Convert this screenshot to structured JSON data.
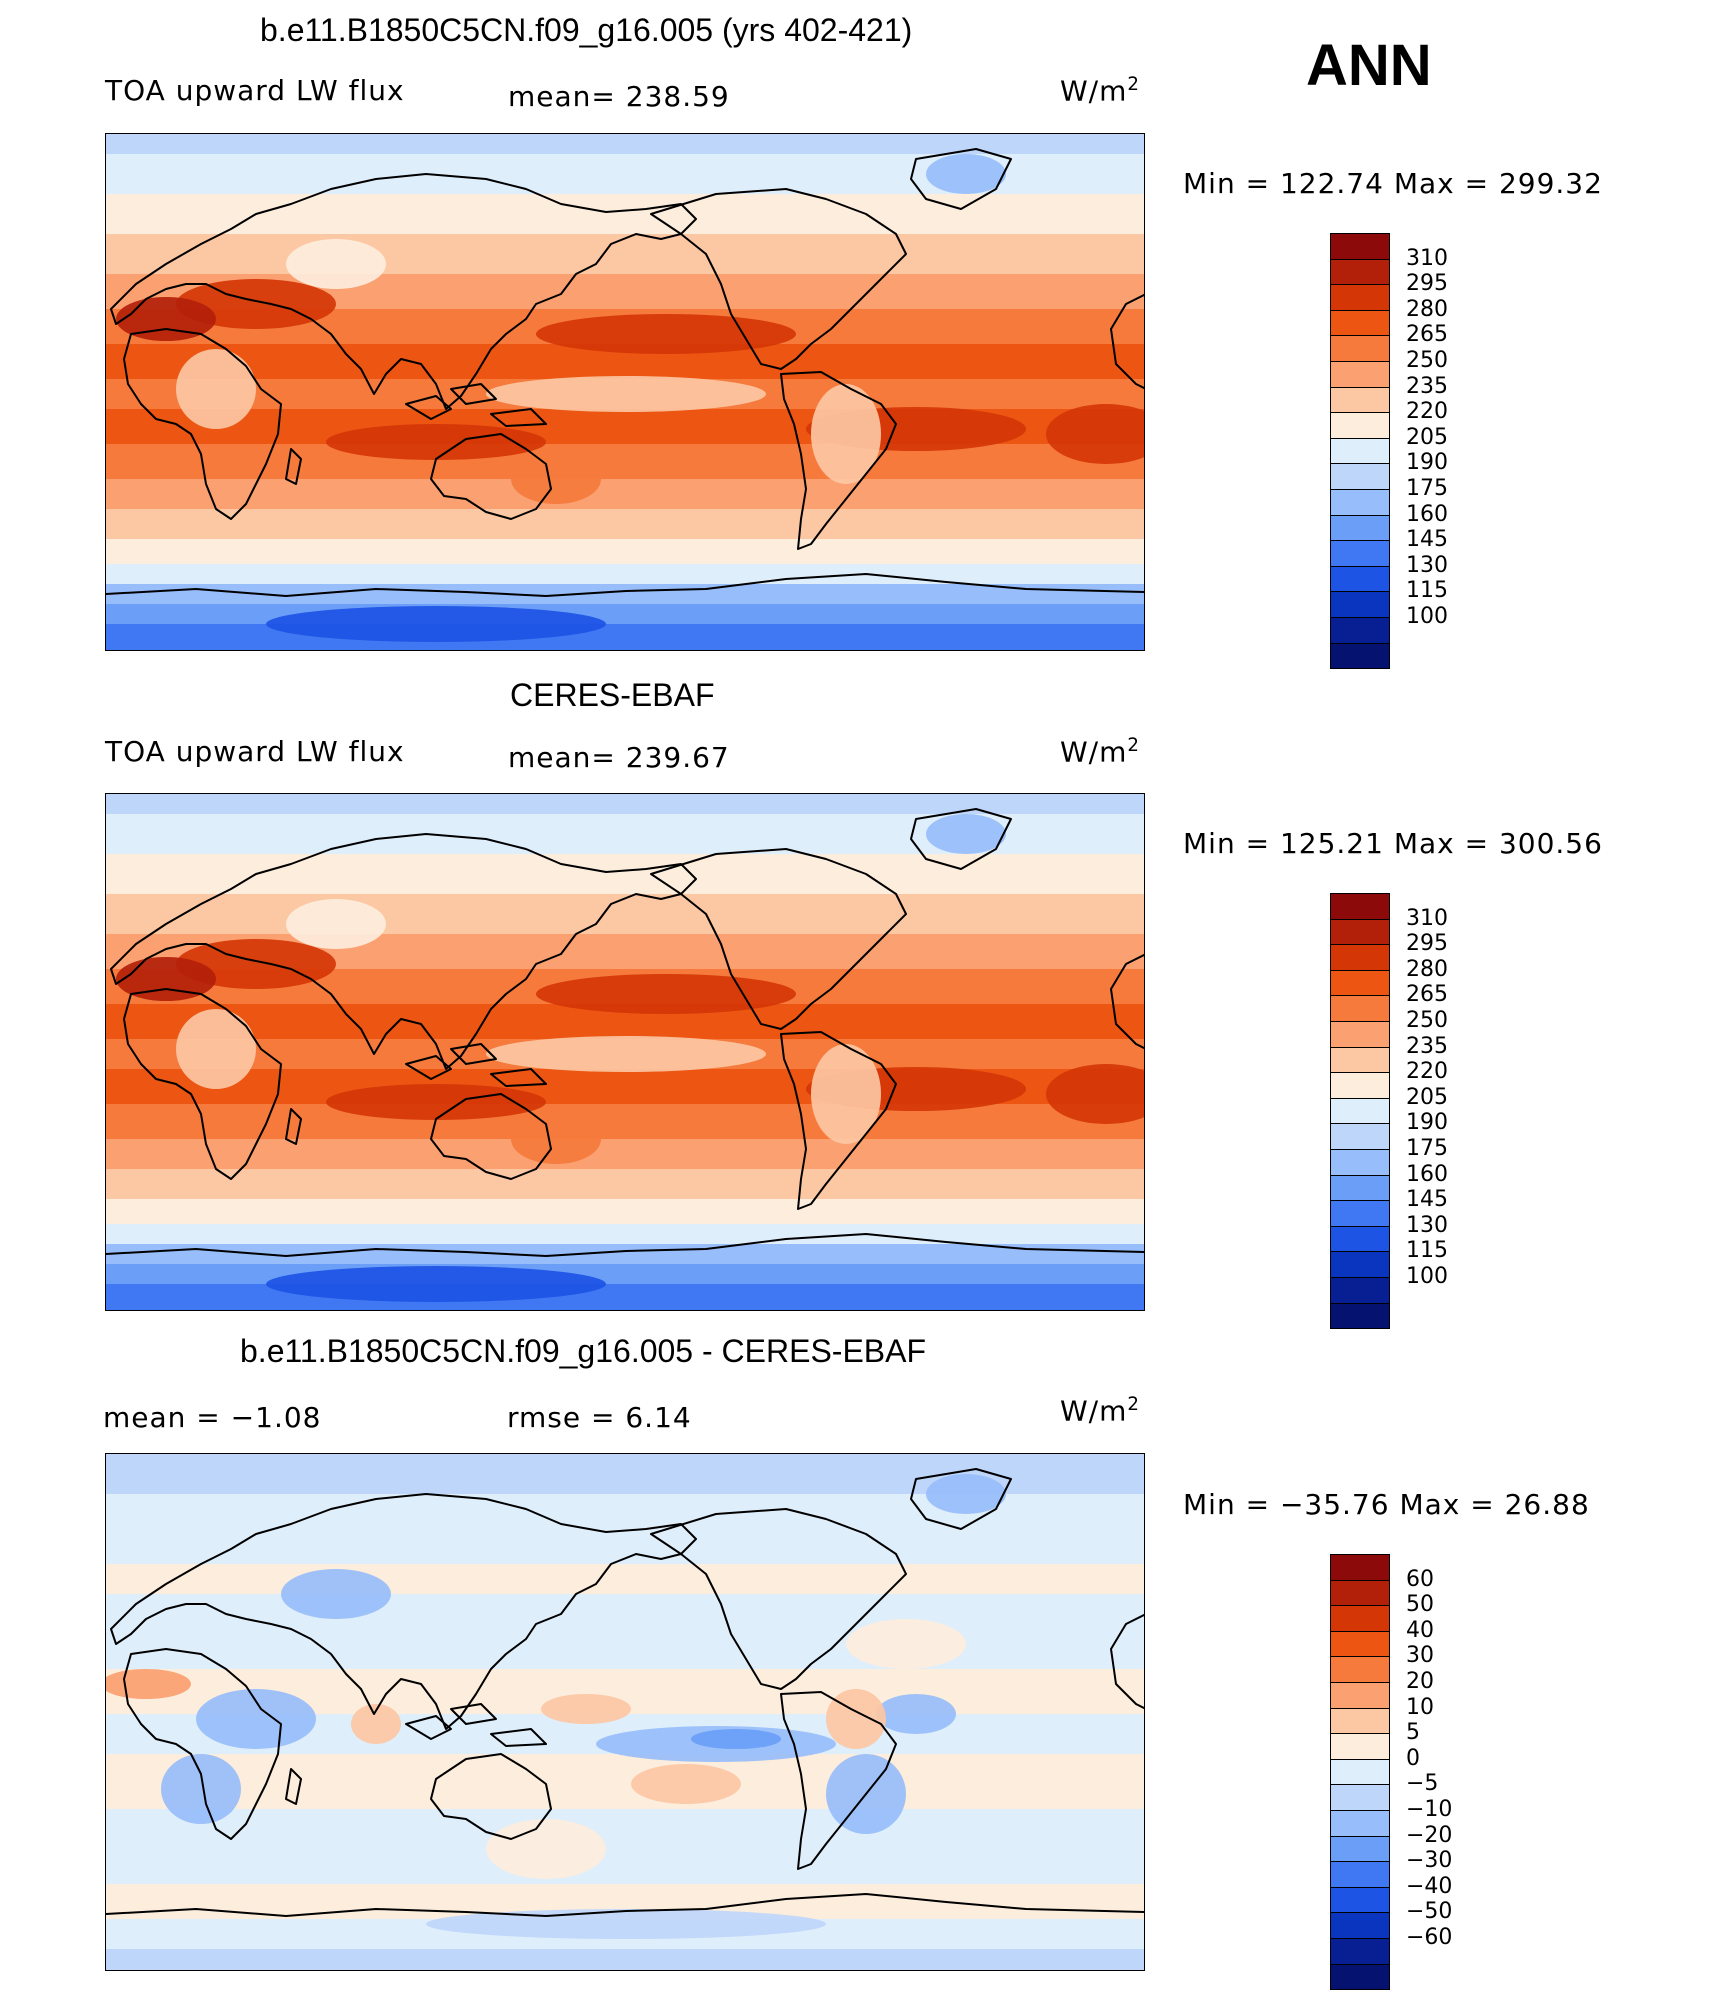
{
  "season": "ANN",
  "panels": [
    {
      "id": "model",
      "title": "b.e11.B1850C5CN.f09_g16.005 (yrs 402-421)",
      "left_label": "TOA upward LW flux",
      "mid_label": "mean= 238.59",
      "units": "W/m",
      "units_sup": "2",
      "minmax": "Min  =  122.74  Max  =  299.32",
      "kind": "abs",
      "colorbar_labels": [
        "310",
        "295",
        "280",
        "265",
        "250",
        "235",
        "220",
        "205",
        "190",
        "175",
        "160",
        "145",
        "130",
        "115",
        "100"
      ],
      "colorbar_colors": [
        "#8c0a0a",
        "#b3200a",
        "#d43606",
        "#ec5512",
        "#f57a3c",
        "#fba070",
        "#fcc7a3",
        "#fdeddc",
        "#dfeefb",
        "#bfd6fb",
        "#97bdfa",
        "#6a9ef7",
        "#3f78f2",
        "#1d54e4",
        "#0a36bf",
        "#081f93",
        "#061270"
      ]
    },
    {
      "id": "obs",
      "title": "CERES-EBAF",
      "left_label": "TOA upward LW flux",
      "mid_label": "mean= 239.67",
      "units": "W/m",
      "units_sup": "2",
      "minmax": "Min  =  125.21  Max  =  300.56",
      "kind": "abs",
      "colorbar_labels": [
        "310",
        "295",
        "280",
        "265",
        "250",
        "235",
        "220",
        "205",
        "190",
        "175",
        "160",
        "145",
        "130",
        "115",
        "100"
      ],
      "colorbar_colors": [
        "#8c0a0a",
        "#b3200a",
        "#d43606",
        "#ec5512",
        "#f57a3c",
        "#fba070",
        "#fcc7a3",
        "#fdeddc",
        "#dfeefb",
        "#bfd6fb",
        "#97bdfa",
        "#6a9ef7",
        "#3f78f2",
        "#1d54e4",
        "#0a36bf",
        "#081f93",
        "#061270"
      ]
    },
    {
      "id": "diff",
      "title": "b.e11.B1850C5CN.f09_g16.005 - CERES-EBAF",
      "left_label": "mean =    −1.08",
      "mid_label": "rmse =     6.14",
      "units": "W/m",
      "units_sup": "2",
      "minmax": "Min  =  −35.76  Max  =    26.88",
      "kind": "diff",
      "colorbar_labels": [
        "60",
        "50",
        "40",
        "30",
        "20",
        "10",
        "5",
        "0",
        "−5",
        "−10",
        "−20",
        "−30",
        "−40",
        "−50",
        "−60"
      ],
      "colorbar_colors": [
        "#8c0a0a",
        "#b3200a",
        "#d43606",
        "#ec5512",
        "#f57a3c",
        "#fba070",
        "#fcc7a3",
        "#fdeddc",
        "#dfeefb",
        "#bfd6fb",
        "#97bdfa",
        "#6a9ef7",
        "#3f78f2",
        "#1d54e4",
        "#0a36bf",
        "#081f93",
        "#061270"
      ]
    }
  ]
}
